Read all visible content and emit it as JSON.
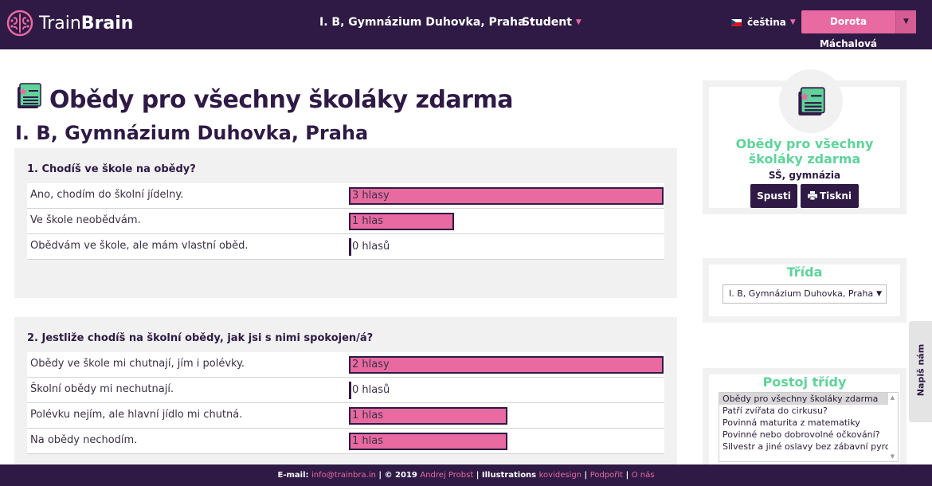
{
  "header": {
    "logo_light": "Train",
    "logo_bold": "Brain",
    "class_nav": "I. B, Gymnázium Duhovka, Praha",
    "role_nav": "Student",
    "language": "čeština",
    "user_name": "Dorota Máchalová"
  },
  "page": {
    "title": "Obědy pro všechny školáky zdarma",
    "subtitle": "I. B, Gymnázium Duhovka, Praha"
  },
  "questions": [
    {
      "title": "1. Chodíš ve škole na obědy?",
      "answers": [
        {
          "label": "Ano, chodím do školní jídelny.",
          "votes": "3 hlasy",
          "count": 3
        },
        {
          "label": "Ve škole neobědvám.",
          "votes": "1 hlas",
          "count": 1
        },
        {
          "label": "Obědvám ve škole, ale mám vlastní oběd.",
          "votes": "0 hlasů",
          "count": 0
        }
      ]
    },
    {
      "title": "2. Jestliže chodíš na školní obědy, jak jsi s nimi spokojen/á?",
      "answers": [
        {
          "label": "Obědy ve škole mi chutnají, jím i polévky.",
          "votes": "2 hlasy",
          "count": 2
        },
        {
          "label": "Školní obědy mi nechutnají.",
          "votes": "0 hlasů",
          "count": 0
        },
        {
          "label": "Polévku nejím, ale hlavní jídlo mi chutná.",
          "votes": "1 hlas",
          "count": 1
        },
        {
          "label": "Na obědy nechodím.",
          "votes": "1 hlas",
          "count": 1
        }
      ]
    }
  ],
  "sidebar": {
    "topic_title": "Obědy pro všechny školáky zdarma",
    "topic_sub": "SŠ, gymnázia",
    "start_label": "Spusti",
    "print_label": "Tiskni",
    "class_heading": "Třída",
    "class_selected": "I. B, Gymnázium Duhovka, Praha",
    "stance_heading": "Postoj třídy",
    "stance_items": [
      "Obědy pro všechny školáky zdarma",
      "Patří zvířata do cirkusu?",
      "Povinná maturita z matematiky",
      "Povinné nebo dobrovolné očkování?",
      "Silvestr a jiné oslavy bez zábavní pyrotechniky"
    ]
  },
  "feedback_label": "Napiš nám",
  "footer": {
    "email_prefix": "E-mail:",
    "email": "info@trainbra.in",
    "copyright": "© 2019",
    "author": "Andrej Probst",
    "illustrations_prefix": "Illustrations",
    "illustrator": "kovidesign",
    "support": "Podpořit",
    "about": "O nás"
  },
  "colors": {
    "header_bg": "#2e1a45",
    "accent_pink": "#e86aa0",
    "accent_green": "#5fd39a",
    "panel_bg": "#f1f1f1"
  }
}
